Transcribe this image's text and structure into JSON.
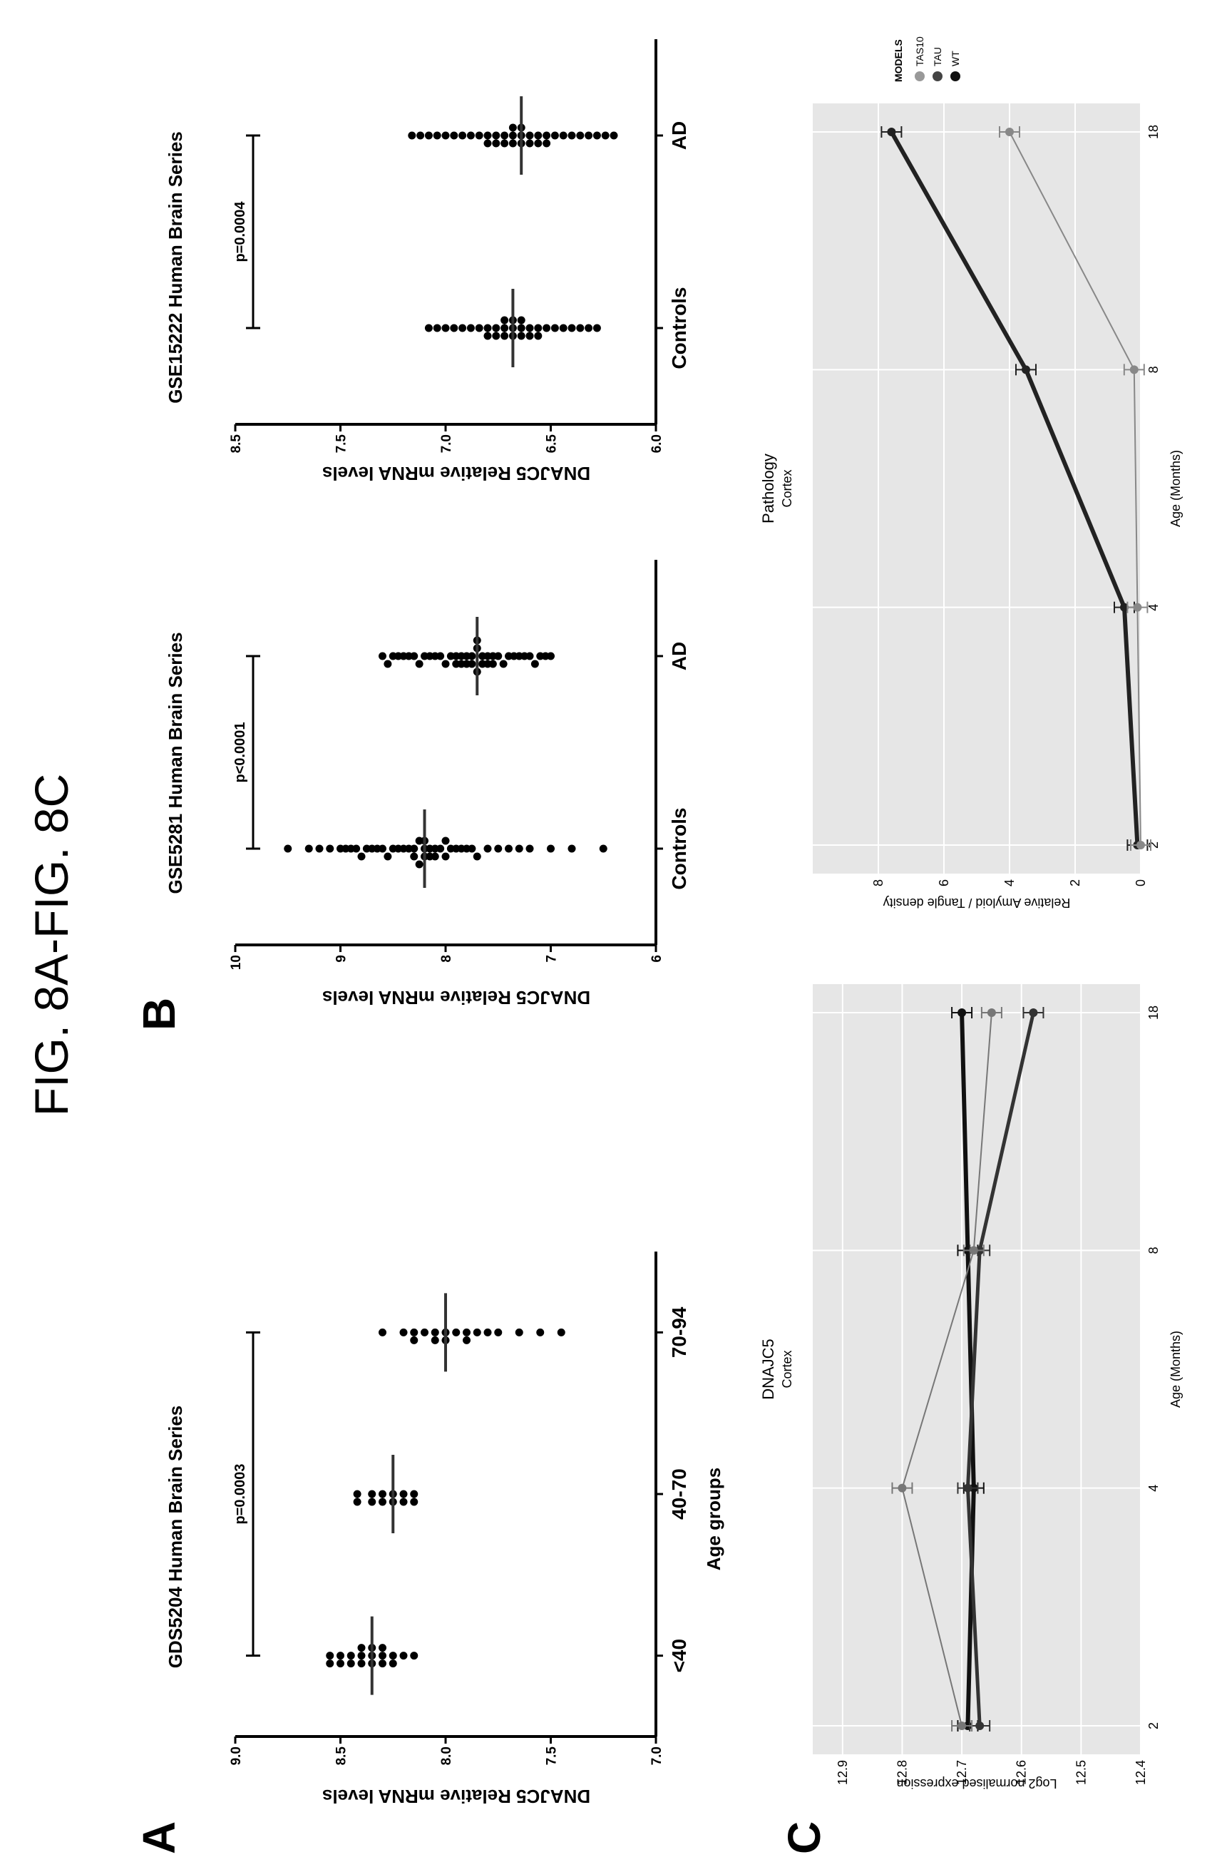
{
  "figure_title": "FIG. 8A-FIG. 8C",
  "panel_labels": {
    "a": "A",
    "b": "B",
    "c": "C"
  },
  "chart_data": [
    {
      "panel": "A",
      "type": "scatter",
      "title": "GDS5204 Human Brain Series",
      "xlabel": "Age groups",
      "ylabel": "DNAJC5 Relative mRNA levels",
      "categories": [
        "<40",
        "40-70",
        "70-94"
      ],
      "yticks": [
        "9.0",
        "8.5",
        "8.0",
        "7.5",
        "7.0"
      ],
      "ylim": [
        7.0,
        9.0
      ],
      "annotation": "p=0.0003",
      "groups": [
        {
          "name": "<40",
          "mean": 8.35,
          "values": [
            8.55,
            8.55,
            8.5,
            8.5,
            8.45,
            8.45,
            8.4,
            8.4,
            8.4,
            8.35,
            8.35,
            8.35,
            8.3,
            8.3,
            8.3,
            8.25,
            8.25,
            8.2,
            8.15
          ]
        },
        {
          "name": "40-70",
          "mean": 8.25,
          "values": [
            8.42,
            8.42,
            8.35,
            8.35,
            8.3,
            8.3,
            8.25,
            8.25,
            8.2,
            8.2,
            8.15,
            8.15
          ]
        },
        {
          "name": "70-94",
          "mean": 8.0,
          "values": [
            8.3,
            8.2,
            8.15,
            8.15,
            8.1,
            8.05,
            8.05,
            8.0,
            8.0,
            7.95,
            7.9,
            7.9,
            7.85,
            7.8,
            7.75,
            7.65,
            7.55,
            7.45
          ]
        }
      ]
    },
    {
      "panel": "B-left",
      "type": "scatter",
      "title": "GSE5281 Human Brain Series",
      "xlabel": "",
      "ylabel": "DNAJC5 Relative mRNA levels",
      "categories": [
        "Controls",
        "AD"
      ],
      "yticks": [
        "10",
        "9",
        "8",
        "7",
        "6"
      ],
      "ylim": [
        6,
        10
      ],
      "annotation": "p<0.0001",
      "groups": [
        {
          "name": "Controls",
          "mean": 8.2,
          "values": [
            9.5,
            9.3,
            9.2,
            9.1,
            9.0,
            8.95,
            8.9,
            8.85,
            8.8,
            8.75,
            8.7,
            8.65,
            8.6,
            8.55,
            8.5,
            8.45,
            8.4,
            8.35,
            8.3,
            8.3,
            8.25,
            8.25,
            8.2,
            8.2,
            8.2,
            8.15,
            8.15,
            8.1,
            8.1,
            8.05,
            8.0,
            8.0,
            7.95,
            7.9,
            7.85,
            7.8,
            7.75,
            7.7,
            7.6,
            7.5,
            7.4,
            7.3,
            7.2,
            7.0,
            6.8,
            6.5
          ]
        },
        {
          "name": "AD",
          "mean": 7.7,
          "values": [
            8.6,
            8.55,
            8.5,
            8.45,
            8.4,
            8.35,
            8.3,
            8.25,
            8.2,
            8.15,
            8.1,
            8.05,
            8.0,
            7.95,
            7.9,
            7.9,
            7.85,
            7.85,
            7.8,
            7.8,
            7.75,
            7.75,
            7.7,
            7.7,
            7.7,
            7.65,
            7.65,
            7.6,
            7.6,
            7.55,
            7.55,
            7.5,
            7.45,
            7.4,
            7.35,
            7.3,
            7.25,
            7.2,
            7.15,
            7.1,
            7.05,
            7.0
          ]
        }
      ]
    },
    {
      "panel": "B-right",
      "type": "scatter",
      "title": "GSE15222 Human Brain Series",
      "xlabel": "",
      "ylabel": "DNAJC5 Relative mRNA levels",
      "categories": [
        "Controls",
        "AD"
      ],
      "yticks": [
        "8.5",
        "7.5",
        "7.0",
        "6.5",
        "6.0"
      ],
      "ylim": [
        6.0,
        8.5
      ],
      "annotation": "p=0.0004",
      "groups": [
        {
          "name": "Controls",
          "mean": 6.85,
          "values": [
            7.35,
            7.3,
            7.25,
            7.2,
            7.15,
            7.1,
            7.05,
            7.0,
            7.0,
            6.95,
            6.95,
            6.9,
            6.9,
            6.9,
            6.85,
            6.85,
            6.85,
            6.8,
            6.8,
            6.8,
            6.75,
            6.75,
            6.7,
            6.7,
            6.65,
            6.6,
            6.55,
            6.5,
            6.45,
            6.4,
            6.35
          ]
        },
        {
          "name": "AD",
          "mean": 6.8,
          "values": [
            7.45,
            7.4,
            7.35,
            7.3,
            7.25,
            7.2,
            7.15,
            7.1,
            7.05,
            7.0,
            7.0,
            6.95,
            6.95,
            6.9,
            6.9,
            6.85,
            6.85,
            6.85,
            6.8,
            6.8,
            6.8,
            6.75,
            6.75,
            6.7,
            6.7,
            6.65,
            6.65,
            6.6,
            6.55,
            6.5,
            6.45,
            6.4,
            6.35,
            6.3,
            6.25
          ]
        }
      ]
    },
    {
      "panel": "C-left",
      "type": "line",
      "title": "DNAJC5",
      "subtitle": "Cortex",
      "xlabel": "Age (Months)",
      "ylabel": "Log2 normalised expression",
      "x": [
        2,
        4,
        8,
        18
      ],
      "xticks": [
        "2",
        "4",
        "8",
        "18"
      ],
      "yticks": [
        "12.9",
        "12.8",
        "12.7",
        "12.6",
        "12.5",
        "12.4"
      ],
      "ylim": [
        12.4,
        12.95
      ],
      "series": [
        {
          "name": "WT",
          "values": [
            12.69,
            12.68,
            12.69,
            12.7
          ],
          "color": "#111111",
          "width": 6
        },
        {
          "name": "TAU",
          "values": [
            12.67,
            12.69,
            12.67,
            12.58
          ],
          "color": "#333333",
          "width": 5
        },
        {
          "name": "TAS10",
          "values": [
            12.7,
            12.8,
            12.68,
            12.65
          ],
          "color": "#777777",
          "width": 2
        }
      ]
    },
    {
      "panel": "C-right",
      "type": "line",
      "title": "Pathology",
      "subtitle": "Cortex",
      "xlabel": "Age (Months)",
      "ylabel": "Relative Amyloid / Tangle density",
      "x": [
        2,
        4,
        8,
        18
      ],
      "xticks": [
        "2",
        "4",
        "8",
        "18"
      ],
      "yticks": [
        "8",
        "6",
        "4",
        "2",
        "0"
      ],
      "ylim": [
        0,
        10
      ],
      "series": [
        {
          "name": "TAU",
          "values": [
            0.1,
            0.5,
            3.5,
            7.6
          ],
          "color": "#222222",
          "width": 6
        },
        {
          "name": "TAS10",
          "values": [
            0.0,
            0.1,
            0.2,
            4.0
          ],
          "color": "#888888",
          "width": 2
        }
      ]
    }
  ],
  "legend": {
    "title": "MODELS",
    "items": [
      "TAS10",
      "TAU",
      "WT"
    ]
  }
}
